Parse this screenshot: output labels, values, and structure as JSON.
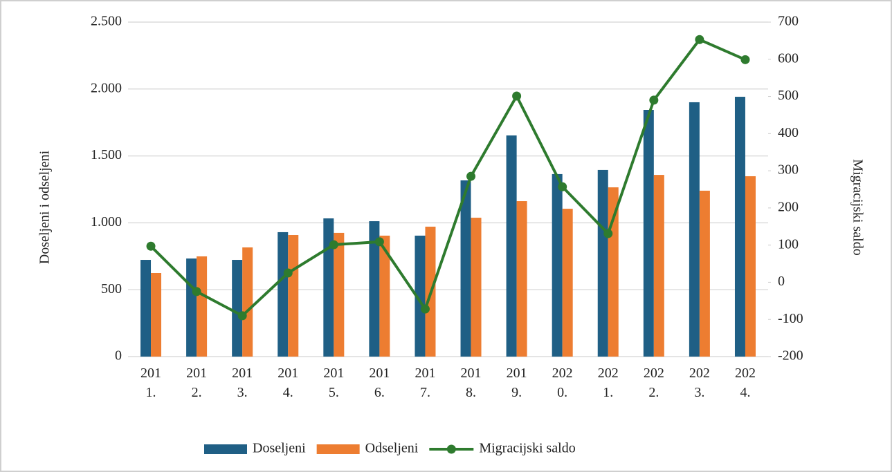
{
  "chart_data": {
    "type": "bar-line",
    "categories": [
      "2011.",
      "2012.",
      "2013.",
      "2014.",
      "2015.",
      "2016.",
      "2017.",
      "2018.",
      "2019.",
      "2020.",
      "2021.",
      "2022.",
      "2023.",
      "2024."
    ],
    "y_label": "Doseljeni i odseljeni",
    "y2_label": "Migracijski saldo",
    "series": [
      {
        "name": "Doseljeni",
        "type": "bar",
        "color": "#1f5f85",
        "values": [
          723,
          733,
          723,
          930,
          1033,
          1012,
          904,
          1317,
          1653,
          1364,
          1395,
          1844,
          1901,
          1942
        ]
      },
      {
        "name": "Odseljeni",
        "type": "bar",
        "color": "#ed7d31",
        "values": [
          625,
          749,
          816,
          909,
          925,
          904,
          971,
          1038,
          1162,
          1105,
          1265,
          1358,
          1240,
          1348
        ]
      },
      {
        "name": "Migracijski saldo",
        "type": "line",
        "axis": "y2",
        "color": "#2e7b2e",
        "values": [
          97,
          -25,
          -90,
          25,
          101,
          109,
          -72,
          285,
          501,
          257,
          131,
          490,
          653,
          599
        ]
      }
    ],
    "ylim": [
      0,
      2500
    ],
    "yticks": [
      0,
      500,
      {
        "value": 1000,
        "label": "1.000"
      },
      {
        "value": 1500,
        "label": "1.500"
      },
      {
        "value": 2000,
        "label": "2.000"
      },
      {
        "value": 2500,
        "label": "2.500"
      }
    ],
    "y2lim": [
      -200,
      700
    ],
    "y2ticks": [
      -200,
      -100,
      0,
      100,
      200,
      300,
      400,
      500,
      600,
      700
    ],
    "grid": true,
    "legend": "bottom"
  }
}
